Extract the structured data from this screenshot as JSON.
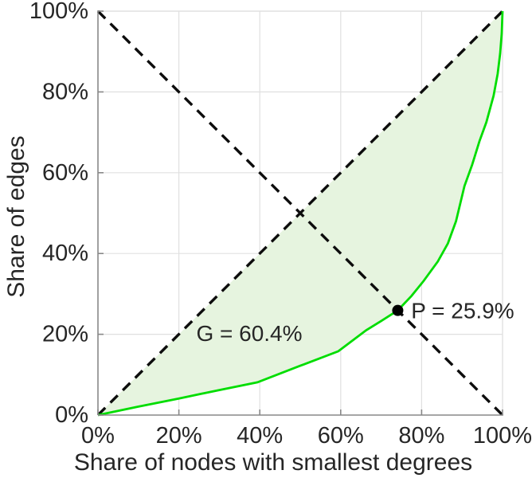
{
  "page": {
    "background": "#ffffff",
    "description": "Lorenz curve of graph degree distribution"
  },
  "chart_data": {
    "type": "line",
    "title": "",
    "xlabel": "Share of nodes with smallest degrees",
    "ylabel": "Share of edges",
    "xlim": [
      0,
      100
    ],
    "ylim": [
      0,
      100
    ],
    "grid": true,
    "legend": "none",
    "xtick_values": [
      0,
      20,
      40,
      60,
      80,
      100
    ],
    "xtick_labels": [
      "0%",
      "20%",
      "40%",
      "60%",
      "80%",
      "100%"
    ],
    "ytick_values": [
      0,
      20,
      40,
      60,
      80,
      100
    ],
    "ytick_labels": [
      "0%",
      "20%",
      "40%",
      "60%",
      "80%",
      "100%"
    ],
    "colors": {
      "curve": "#00dd00",
      "fill": "#e6f4df",
      "dashed_line": "#0d0d0d",
      "grid": "#e0e0e0",
      "axis": "#888888",
      "text": "#262626",
      "marker": "#000000"
    },
    "series": [
      {
        "name": "equality-diagonal",
        "dashed": true,
        "points": [
          [
            0,
            0
          ],
          [
            100,
            100
          ]
        ]
      },
      {
        "name": "anti-diagonal",
        "dashed": true,
        "points": [
          [
            0,
            100
          ],
          [
            100,
            0
          ]
        ]
      },
      {
        "name": "lorenz-curve",
        "dashed": false,
        "fill_between_diagonal": true,
        "points": [
          [
            0,
            0
          ],
          [
            10,
            2.1
          ],
          [
            20,
            4.1
          ],
          [
            30,
            6.2
          ],
          [
            39.4,
            8.1
          ],
          [
            50,
            12.2
          ],
          [
            59.4,
            15.8
          ],
          [
            66.3,
            21.0
          ],
          [
            70,
            23.3
          ],
          [
            74.1,
            25.9
          ],
          [
            77.5,
            29.5
          ],
          [
            80.5,
            33.2
          ],
          [
            84,
            38
          ],
          [
            86.5,
            42.5
          ],
          [
            88.5,
            48
          ],
          [
            90.6,
            56.7
          ],
          [
            92.5,
            62
          ],
          [
            94.3,
            67.8
          ],
          [
            96,
            72.5
          ],
          [
            97.8,
            79.1
          ],
          [
            98.8,
            84.5
          ],
          [
            99.4,
            89.5
          ],
          [
            99.8,
            94.5
          ],
          [
            100,
            100
          ]
        ]
      }
    ],
    "marker_point": {
      "label": "P",
      "x": 74.1,
      "y": 25.9
    },
    "annotations": [
      {
        "name": "gini-label",
        "text": "G = 60.4%",
        "x": 37.4,
        "y": 20.2,
        "anchor": "middle"
      },
      {
        "name": "p-label",
        "text": "P = 25.9%",
        "x": 77.4,
        "y": 25.8,
        "anchor": "start"
      }
    ]
  }
}
